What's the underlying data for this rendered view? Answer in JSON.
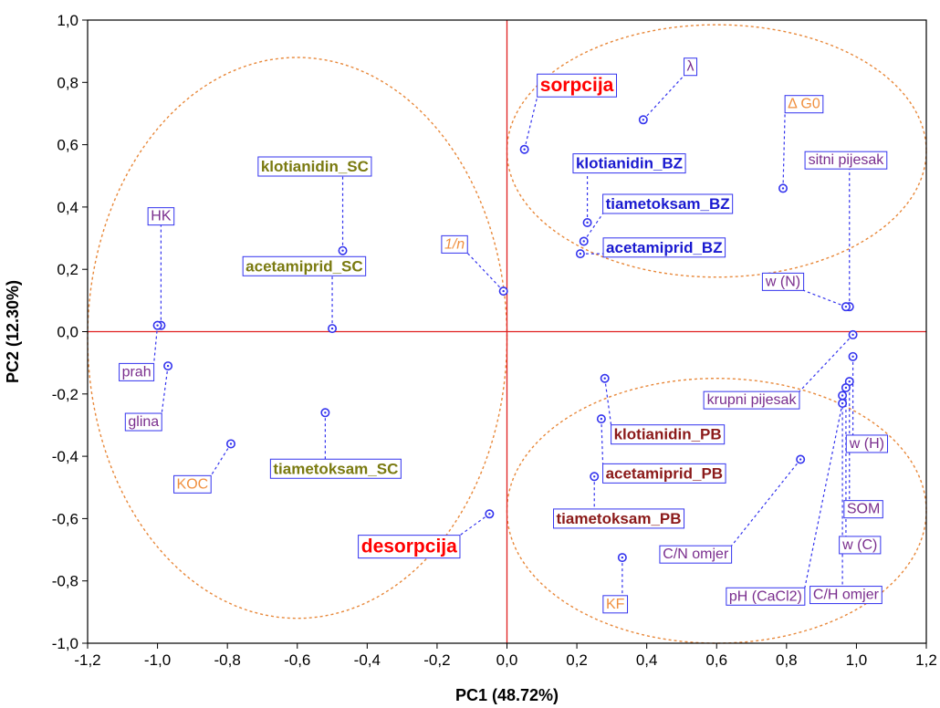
{
  "chart_data": {
    "type": "scatter",
    "title": "",
    "xlabel": "PC1 (48.72%)",
    "ylabel": "PC2 (12.30%)",
    "xlim": [
      -1.2,
      1.2
    ],
    "ylim": [
      -1.0,
      1.0
    ],
    "x_ticks": [
      "-1,2",
      "-1,0",
      "-0,8",
      "-0,6",
      "-0,4",
      "-0,2",
      "0,0",
      "0,2",
      "0,4",
      "0,6",
      "0,8",
      "1,0",
      "1,2"
    ],
    "y_ticks": [
      "1,0",
      "0,8",
      "0,6",
      "0,4",
      "0,2",
      "0,0",
      "-0,2",
      "-0,4",
      "-0,6",
      "-0,8",
      "-1,0"
    ],
    "grid": false,
    "colors": {
      "points": "#3333ee",
      "axes_cross": "#e02020",
      "ellipse": "#e8883a",
      "label_violet": "#7a2e8e",
      "label_olive": "#7a7a10",
      "label_blue": "#1a1ad0",
      "label_maroon": "#8b1a1a",
      "label_orange": "#f09040",
      "label_red": "#ff0000"
    },
    "ellipses": [
      {
        "cx": -0.6,
        "cy": -0.02,
        "rx": 0.6,
        "ry": 0.9
      },
      {
        "cx": 0.6,
        "cy": 0.58,
        "rx": 0.6,
        "ry": 0.405
      },
      {
        "cx": 0.6,
        "cy": -0.575,
        "rx": 0.6,
        "ry": 0.425
      }
    ],
    "points": [
      {
        "name": "HK",
        "x": -0.99,
        "y": 0.02,
        "style": "violet",
        "lx": -0.99,
        "ly": 0.37
      },
      {
        "name": "prah",
        "x": -1.0,
        "y": 0.02,
        "style": "violet",
        "lx": -1.06,
        "ly": -0.13
      },
      {
        "name": "glina",
        "x": -0.97,
        "y": -0.11,
        "style": "violet",
        "lx": -1.04,
        "ly": -0.29
      },
      {
        "name": "klotianidin_SC",
        "x": -0.47,
        "y": 0.26,
        "style": "olive",
        "lx": -0.55,
        "ly": 0.53
      },
      {
        "name": "acetamiprid_SC",
        "x": -0.5,
        "y": 0.01,
        "style": "olive",
        "lx": -0.58,
        "ly": 0.21
      },
      {
        "name": "tiametoksam_SC",
        "x": -0.52,
        "y": -0.26,
        "style": "olive",
        "lx": -0.49,
        "ly": -0.44
      },
      {
        "name": "KOC",
        "x": -0.79,
        "y": -0.36,
        "style": "orange",
        "lx": -0.9,
        "ly": -0.49
      },
      {
        "name": "1/n",
        "x": -0.01,
        "y": 0.13,
        "style": "orange",
        "lx": -0.15,
        "ly": 0.28
      },
      {
        "name": "desorpcija",
        "x": -0.05,
        "y": -0.585,
        "style": "red",
        "lx": -0.28,
        "ly": -0.69
      },
      {
        "name": "sorpcija",
        "x": 0.05,
        "y": 0.585,
        "style": "red",
        "lx": 0.2,
        "ly": 0.79
      },
      {
        "name": "λ",
        "x": 0.39,
        "y": 0.68,
        "style": "violet",
        "lx": 0.525,
        "ly": 0.85
      },
      {
        "name": "Δ G0",
        "x": 0.79,
        "y": 0.46,
        "style": "orange",
        "lx": 0.85,
        "ly": 0.73
      },
      {
        "name": "klotianidin_BZ",
        "x": 0.23,
        "y": 0.35,
        "style": "blue",
        "lx": 0.35,
        "ly": 0.54
      },
      {
        "name": "tiametoksam_BZ",
        "x": 0.22,
        "y": 0.29,
        "style": "blue",
        "lx": 0.46,
        "ly": 0.41
      },
      {
        "name": "acetamiprid_BZ",
        "x": 0.21,
        "y": 0.25,
        "style": "blue",
        "lx": 0.45,
        "ly": 0.27
      },
      {
        "name": "sitni pijesak",
        "x": 0.98,
        "y": 0.08,
        "style": "violet",
        "lx": 0.97,
        "ly": 0.55
      },
      {
        "name": "w (N)",
        "x": 0.97,
        "y": 0.08,
        "style": "violet",
        "lx": 0.79,
        "ly": 0.16
      },
      {
        "name": "krupni pijesak",
        "x": 0.99,
        "y": -0.01,
        "style": "violet",
        "lx": 0.7,
        "ly": -0.22
      },
      {
        "name": "klotianidin_PB",
        "x": 0.28,
        "y": -0.15,
        "style": "maroon",
        "lx": 0.46,
        "ly": -0.33
      },
      {
        "name": "acetamiprid_PB",
        "x": 0.27,
        "y": -0.28,
        "style": "maroon",
        "lx": 0.45,
        "ly": -0.455
      },
      {
        "name": "tiametoksam_PB",
        "x": 0.25,
        "y": -0.465,
        "style": "maroon",
        "lx": 0.32,
        "ly": -0.6
      },
      {
        "name": "KF",
        "x": 0.33,
        "y": -0.725,
        "style": "orange",
        "lx": 0.31,
        "ly": -0.875
      },
      {
        "name": "w (H)",
        "x": 0.99,
        "y": -0.08,
        "style": "violet",
        "lx": 1.03,
        "ly": -0.36
      },
      {
        "name": "SOM",
        "x": 0.98,
        "y": -0.16,
        "style": "violet",
        "lx": 1.02,
        "ly": -0.57
      },
      {
        "name": "w (C)",
        "x": 0.97,
        "y": -0.18,
        "style": "violet",
        "lx": 1.01,
        "ly": -0.685
      },
      {
        "name": "C/H omjer",
        "x": 0.96,
        "y": -0.205,
        "style": "violet",
        "lx": 0.97,
        "ly": -0.845
      },
      {
        "name": "C/N omjer",
        "x": 0.84,
        "y": -0.41,
        "style": "violet",
        "lx": 0.54,
        "ly": -0.715
      },
      {
        "name": "pH (CaCl2)",
        "x": 0.96,
        "y": -0.23,
        "style": "violet",
        "lx": 0.74,
        "ly": -0.85
      }
    ]
  }
}
